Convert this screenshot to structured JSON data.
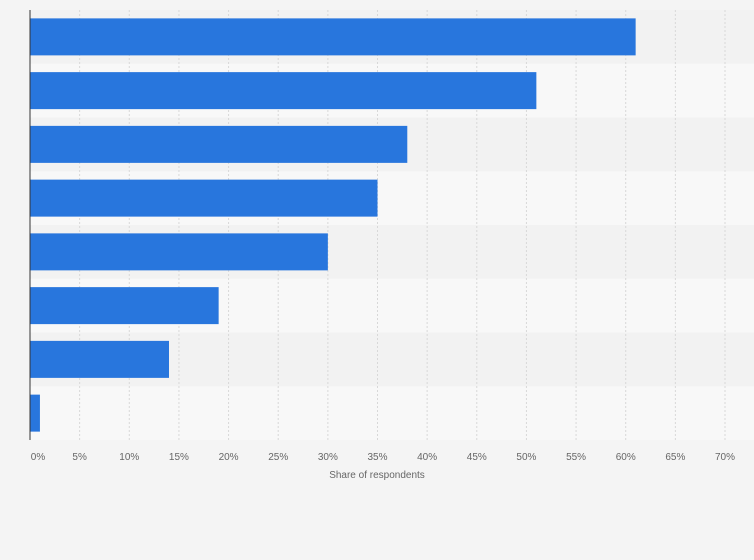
{
  "chart_data": {
    "type": "bar",
    "orientation": "horizontal",
    "title": "",
    "categories": [
      "",
      "",
      "",
      "",
      "",
      "",
      "",
      ""
    ],
    "values": [
      61,
      51,
      38,
      35,
      30,
      19,
      14,
      1
    ],
    "xlabel": "Share of respondents",
    "ylabel": "",
    "xlim": [
      0,
      70
    ],
    "xticks": [
      0,
      5,
      10,
      15,
      20,
      25,
      30,
      35,
      40,
      45,
      50,
      55,
      60,
      65,
      70
    ],
    "xtick_labels": [
      "0%",
      "5%",
      "10%",
      "15%",
      "20%",
      "25%",
      "30%",
      "35%",
      "40%",
      "45%",
      "50%",
      "55%",
      "60%",
      "65%",
      "70%"
    ],
    "grid": true,
    "bar_color": "#2876dd"
  }
}
